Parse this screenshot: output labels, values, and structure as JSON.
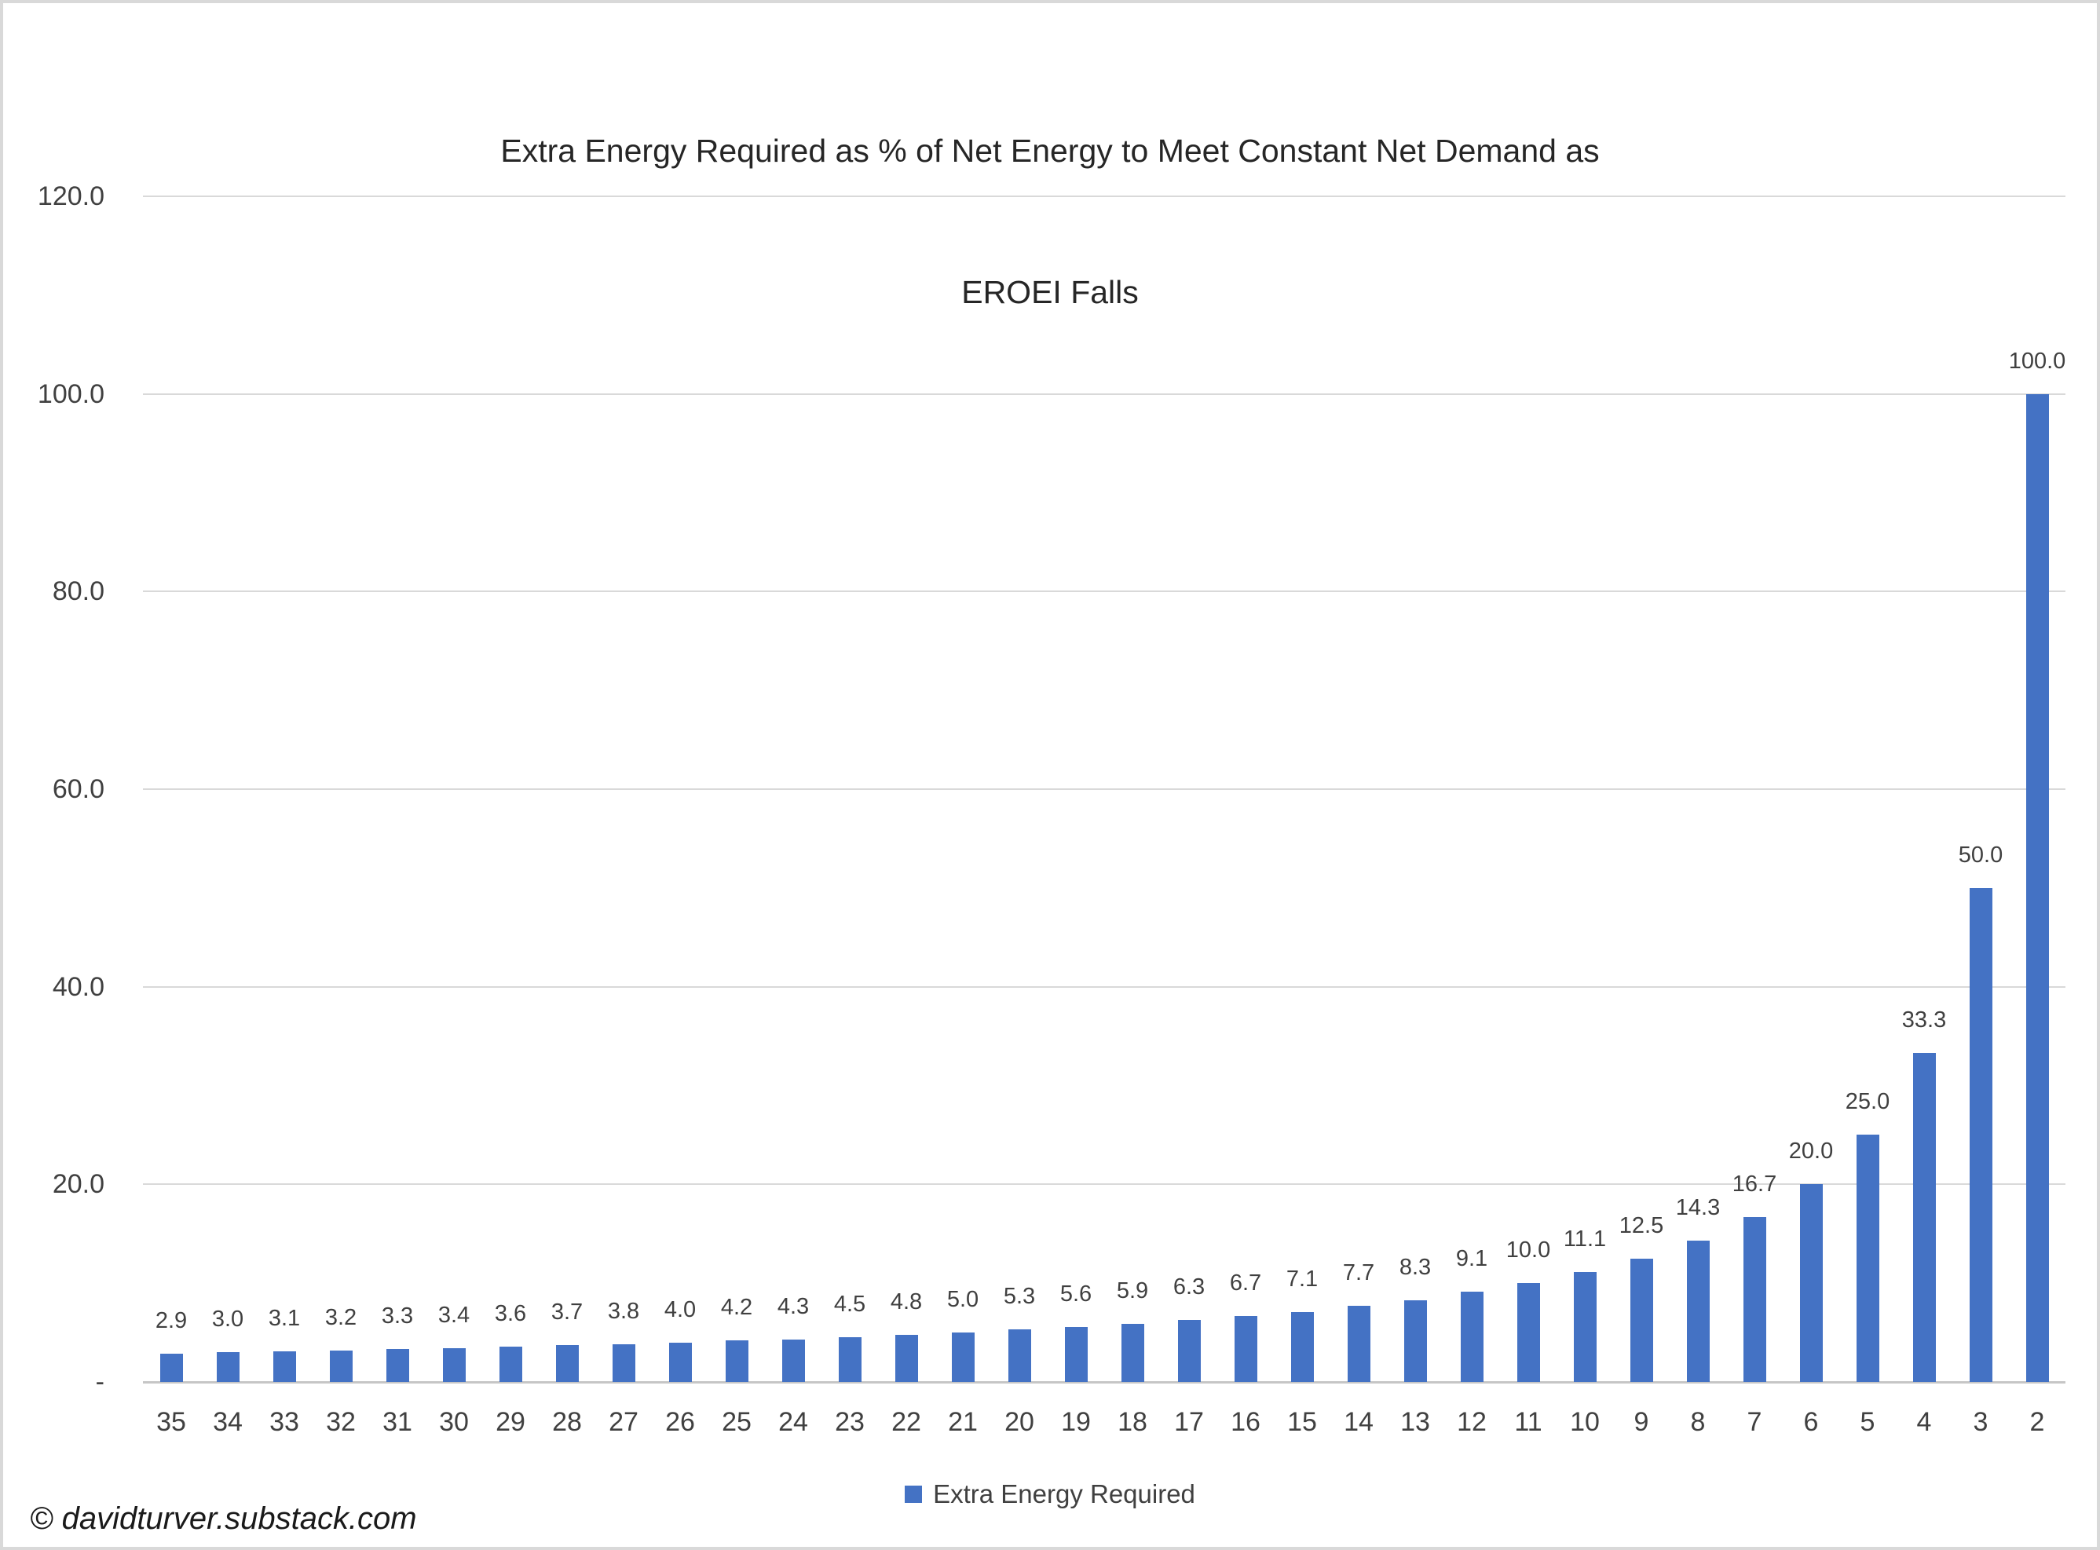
{
  "header": {
    "title_lines": [
      "Extra Energy Required as % of Net Energy to Meet Constant Net Demand as",
      "EROEI Falls"
    ]
  },
  "legend": {
    "label": "Extra Energy Required"
  },
  "footer": {
    "copyright": "© davidturver.substack.com"
  },
  "chart_data": {
    "type": "bar",
    "title": "Extra Energy Required as % of Net Energy to Meet Constant Net Demand as EROEI Falls",
    "xlabel": "",
    "ylabel": "",
    "legend_label": "Extra Energy Required",
    "legend_position": "bottom",
    "grid": true,
    "ylim": [
      0,
      120
    ],
    "bar_color": "#4472C4",
    "gridline_color": "#D9D9D9",
    "axis_line_color": "#C6C6C6",
    "y_ticks": [
      {
        "value": 120,
        "label": "120.0"
      },
      {
        "value": 100,
        "label": "100.0"
      },
      {
        "value": 80,
        "label": "80.0"
      },
      {
        "value": 60,
        "label": "60.0"
      },
      {
        "value": 40,
        "label": "40.0"
      },
      {
        "value": 20,
        "label": "20.0"
      },
      {
        "value": 0,
        "label": "-"
      }
    ],
    "categories": [
      35,
      34,
      33,
      32,
      31,
      30,
      29,
      28,
      27,
      26,
      25,
      24,
      23,
      22,
      21,
      20,
      19,
      18,
      17,
      16,
      15,
      14,
      13,
      12,
      11,
      10,
      9,
      8,
      7,
      6,
      5,
      4,
      3,
      2
    ],
    "values": [
      2.9,
      3.0,
      3.1,
      3.2,
      3.3,
      3.4,
      3.6,
      3.7,
      3.8,
      4.0,
      4.2,
      4.3,
      4.5,
      4.8,
      5.0,
      5.3,
      5.6,
      5.9,
      6.3,
      6.7,
      7.1,
      7.7,
      8.3,
      9.1,
      10.0,
      11.1,
      12.5,
      14.3,
      16.7,
      20.0,
      25.0,
      33.3,
      50.0,
      100.0
    ],
    "value_labels": [
      "2.9",
      "3.0",
      "3.1",
      "3.2",
      "3.3",
      "3.4",
      "3.6",
      "3.7",
      "3.8",
      "4.0",
      "4.2",
      "4.3",
      "4.5",
      "4.8",
      "5.0",
      "5.3",
      "5.6",
      "5.9",
      "6.3",
      "6.7",
      "7.1",
      "7.7",
      "8.3",
      "9.1",
      "10.0",
      "11.1",
      "12.5",
      "14.3",
      "16.7",
      "20.0",
      "25.0",
      "33.3",
      "50.0",
      "100.0"
    ]
  }
}
